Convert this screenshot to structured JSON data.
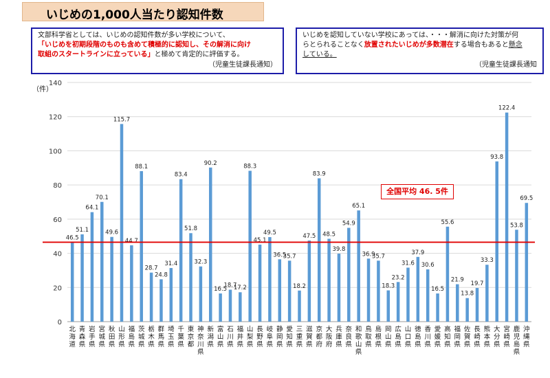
{
  "title": "いじめの1,000人当たり認知件数",
  "note_left": {
    "line1": "文部科学省としては、いじめの認知件数が多い学校について、",
    "line2_red": "「いじめを初期段階のものも含めて積極的に認知し、その解消に向け",
    "line3_red": "取組のスタートラインに立っている」",
    "line3_rest": "と極めて肯定的に評価する。",
    "source": "（児童生徒課長通知）"
  },
  "note_right": {
    "line1": "いじめを認知していない学校にあっては、・・・解消に向けた対策が何",
    "line2_a": "らとられることなく",
    "line2_red": "放置されたいじめが多数潜在",
    "line2_b": "する場合もあると",
    "line2_u": "懸念",
    "line3_u": "している。",
    "source": "（児童生徒課長通知"
  },
  "avg_label": "全国平均 46. 5件",
  "y_unit": "（件）",
  "chart_data": {
    "type": "bar",
    "ylim": [
      0,
      140
    ],
    "yticks": [
      0,
      20,
      40,
      60,
      80,
      100,
      120,
      140
    ],
    "average": 46.5,
    "grid": true,
    "colors": {
      "bar": "#5b9bd5",
      "average_line": "#e00000",
      "grid": "#d9d9d9"
    },
    "categories": [
      "北海道",
      "青森県",
      "岩手県",
      "宮城県",
      "秋田県",
      "山形県",
      "福島県",
      "茨城県",
      "栃木県",
      "群馬県",
      "埼玉県",
      "千葉県",
      "東京都",
      "神奈川県",
      "新潟県",
      "富山県",
      "石川県",
      "福井県",
      "山梨県",
      "長野県",
      "岐阜県",
      "静岡県",
      "愛知県",
      "三重県",
      "滋賀県",
      "京都府",
      "大阪府",
      "兵庫県",
      "奈良県",
      "和歌山県",
      "鳥取県",
      "島根県",
      "岡山県",
      "広島県",
      "山口県",
      "徳島県",
      "香川県",
      "愛媛県",
      "高知県",
      "福岡県",
      "佐賀県",
      "長崎県",
      "熊本県",
      "大分県",
      "宮崎県",
      "鹿児島県",
      "沖縄県"
    ],
    "values": [
      46.5,
      51.1,
      64.1,
      70.1,
      49.6,
      115.7,
      44.7,
      88.1,
      28.7,
      24.8,
      31.4,
      83.4,
      51.8,
      32.3,
      90.2,
      16.5,
      18.7,
      17.2,
      88.3,
      45.1,
      49.5,
      36.5,
      35.7,
      18.2,
      47.5,
      83.9,
      48.5,
      39.8,
      54.9,
      65.1,
      36.9,
      35.7,
      18.3,
      23.2,
      31.6,
      37.9,
      30.6,
      16.5,
      55.6,
      21.9,
      13.8,
      19.7,
      33.3,
      93.8,
      122.4,
      53.8,
      69.5
    ]
  }
}
